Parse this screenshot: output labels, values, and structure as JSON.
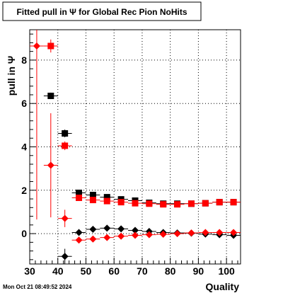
{
  "chart_data": {
    "type": "scatter",
    "title": "Fitted pull in  Ψ  for Global Rec Pion NoHits",
    "xlabel": "Quality",
    "ylabel": "pull in  Ψ",
    "xlim": [
      30,
      105
    ],
    "ylim": [
      -1.4,
      9.4
    ],
    "x_ticks": [
      30,
      40,
      50,
      60,
      70,
      80,
      90,
      100
    ],
    "x_tick_labels": [
      "30",
      "40",
      "50",
      "60",
      "70",
      "80",
      "90",
      "100"
    ],
    "y_ticks": [
      0,
      2,
      4,
      6,
      8
    ],
    "y_tick_labels": [
      "0",
      "2",
      "4",
      "6",
      "8"
    ],
    "grid": true,
    "timestamp": "Mon Oct 21 08:49:52 2024",
    "colors": {
      "black": "#000000",
      "red": "#ff0000"
    },
    "series": [
      {
        "color": "#000000",
        "marker": "square",
        "points": [
          {
            "x": 37.5,
            "y": 6.35,
            "err": 0.15
          },
          {
            "x": 42.5,
            "y": 4.62,
            "err": 0.18
          },
          {
            "x": 47.5,
            "y": 1.88,
            "err": 0.08
          },
          {
            "x": 52.5,
            "y": 1.78,
            "err": 0.07
          },
          {
            "x": 57.5,
            "y": 1.68,
            "err": 0.05
          },
          {
            "x": 62.5,
            "y": 1.58,
            "err": 0.05
          },
          {
            "x": 67.5,
            "y": 1.52,
            "err": 0.05
          },
          {
            "x": 72.5,
            "y": 1.42,
            "err": 0.05
          },
          {
            "x": 77.5,
            "y": 1.38,
            "err": 0.05
          },
          {
            "x": 82.5,
            "y": 1.38,
            "err": 0.05
          },
          {
            "x": 87.5,
            "y": 1.38,
            "err": 0.05
          },
          {
            "x": 92.5,
            "y": 1.4,
            "err": 0.05
          },
          {
            "x": 97.5,
            "y": 1.45,
            "err": 0.05
          },
          {
            "x": 102.5,
            "y": 1.45,
            "err": 0.05
          }
        ]
      },
      {
        "color": "#ff0000",
        "marker": "square",
        "points": [
          {
            "x": 37.5,
            "y": 8.65,
            "err": 0.3
          },
          {
            "x": 42.5,
            "y": 4.05,
            "err": 0.2
          },
          {
            "x": 47.5,
            "y": 1.65,
            "err": 0.1
          },
          {
            "x": 52.5,
            "y": 1.55,
            "err": 0.07
          },
          {
            "x": 57.5,
            "y": 1.5,
            "err": 0.05
          },
          {
            "x": 62.5,
            "y": 1.45,
            "err": 0.05
          },
          {
            "x": 67.5,
            "y": 1.4,
            "err": 0.05
          },
          {
            "x": 72.5,
            "y": 1.38,
            "err": 0.05
          },
          {
            "x": 77.5,
            "y": 1.35,
            "err": 0.05
          },
          {
            "x": 82.5,
            "y": 1.35,
            "err": 0.05
          },
          {
            "x": 87.5,
            "y": 1.38,
            "err": 0.05
          },
          {
            "x": 92.5,
            "y": 1.4,
            "err": 0.05
          },
          {
            "x": 97.5,
            "y": 1.45,
            "err": 0.05
          },
          {
            "x": 102.5,
            "y": 1.45,
            "err": 0.05
          }
        ]
      },
      {
        "color": "#000000",
        "marker": "diamond",
        "points": [
          {
            "x": 42.5,
            "y": -1.05,
            "err": 0.35
          },
          {
            "x": 47.5,
            "y": 0.05,
            "err": 0.1
          },
          {
            "x": 52.5,
            "y": 0.2,
            "err": 0.07
          },
          {
            "x": 57.5,
            "y": 0.25,
            "err": 0.05
          },
          {
            "x": 62.5,
            "y": 0.22,
            "err": 0.05
          },
          {
            "x": 67.5,
            "y": 0.15,
            "err": 0.05
          },
          {
            "x": 72.5,
            "y": 0.1,
            "err": 0.05
          },
          {
            "x": 77.5,
            "y": 0.05,
            "err": 0.05
          },
          {
            "x": 82.5,
            "y": 0.03,
            "err": 0.05
          },
          {
            "x": 87.5,
            "y": 0.02,
            "err": 0.05
          },
          {
            "x": 92.5,
            "y": -0.02,
            "err": 0.05
          },
          {
            "x": 97.5,
            "y": -0.05,
            "err": 0.05
          },
          {
            "x": 102.5,
            "y": -0.08,
            "err": 0.05
          }
        ]
      },
      {
        "color": "#ff0000",
        "marker": "diamond",
        "points": [
          {
            "x": 32.5,
            "y": 8.65,
            "err": 8.0
          },
          {
            "x": 37.5,
            "y": 3.15,
            "err": 2.4
          },
          {
            "x": 42.5,
            "y": 0.7,
            "err": 0.4
          },
          {
            "x": 47.5,
            "y": -0.3,
            "err": 0.1
          },
          {
            "x": 52.5,
            "y": -0.25,
            "err": 0.07
          },
          {
            "x": 57.5,
            "y": -0.18,
            "err": 0.05
          },
          {
            "x": 62.5,
            "y": -0.12,
            "err": 0.05
          },
          {
            "x": 67.5,
            "y": -0.08,
            "err": 0.05
          },
          {
            "x": 72.5,
            "y": -0.05,
            "err": 0.05
          },
          {
            "x": 77.5,
            "y": -0.03,
            "err": 0.05
          },
          {
            "x": 82.5,
            "y": 0.0,
            "err": 0.05
          },
          {
            "x": 87.5,
            "y": 0.03,
            "err": 0.05
          },
          {
            "x": 92.5,
            "y": 0.05,
            "err": 0.05
          },
          {
            "x": 97.5,
            "y": 0.05,
            "err": 0.05
          },
          {
            "x": 102.5,
            "y": 0.05,
            "err": 0.05
          }
        ]
      }
    ]
  }
}
